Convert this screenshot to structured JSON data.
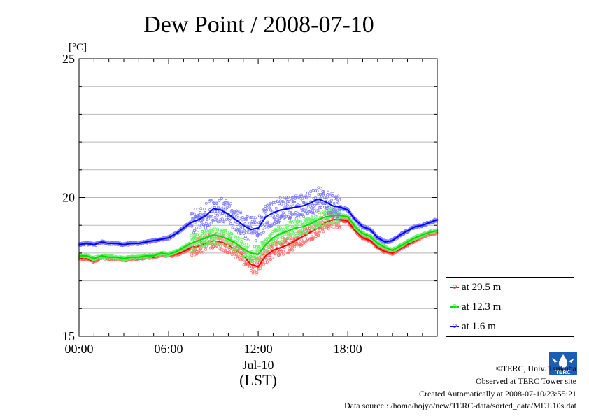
{
  "chart_data": {
    "type": "line",
    "title": "Dew Point / 2008-07-10",
    "unit_label": "[°C]",
    "xlabel": "(LST)",
    "date_label": "Jul-10",
    "x_ticks": [
      "00:00",
      "06:00",
      "12:00",
      "18:00"
    ],
    "x_tick_hours": [
      0,
      6,
      12,
      18
    ],
    "xlim_hours": [
      0,
      23.99
    ],
    "y_ticks": [
      15,
      20,
      25
    ],
    "ylim": [
      15,
      25
    ],
    "grid": true,
    "legend_position": "right-bottom",
    "x_hours": [
      0,
      0.5,
      1,
      1.5,
      2,
      2.5,
      3,
      3.5,
      4,
      4.5,
      5,
      5.5,
      6,
      6.5,
      7,
      7.5,
      8,
      8.5,
      9,
      9.5,
      10,
      10.5,
      11,
      11.5,
      12,
      12.5,
      13,
      13.5,
      14,
      14.5,
      15,
      15.5,
      16,
      16.5,
      17,
      17.5,
      18,
      18.5,
      19,
      19.5,
      20,
      20.5,
      21,
      21.5,
      22,
      22.5,
      23,
      23.5,
      23.99
    ],
    "series": [
      {
        "name": "at 29.5 m",
        "color": "#ff0000",
        "values": [
          17.8,
          17.8,
          17.7,
          17.85,
          17.8,
          17.8,
          17.75,
          17.8,
          17.8,
          17.85,
          17.85,
          17.95,
          17.9,
          17.95,
          18.05,
          18.2,
          18.25,
          18.35,
          18.45,
          18.4,
          18.3,
          18.1,
          17.9,
          17.6,
          17.5,
          17.9,
          18.1,
          18.2,
          18.3,
          18.45,
          18.6,
          18.75,
          18.9,
          19.1,
          19.2,
          19.2,
          19.15,
          18.8,
          18.55,
          18.45,
          18.2,
          18.05,
          18.0,
          18.15,
          18.3,
          18.45,
          18.6,
          18.7,
          18.75
        ]
      },
      {
        "name": "at 12.3 m",
        "color": "#00dd00",
        "values": [
          17.9,
          17.9,
          17.8,
          17.9,
          17.85,
          17.85,
          17.8,
          17.85,
          17.85,
          17.9,
          17.9,
          18.0,
          17.95,
          18.05,
          18.2,
          18.35,
          18.45,
          18.55,
          18.65,
          18.6,
          18.5,
          18.35,
          18.15,
          18.0,
          17.95,
          18.3,
          18.55,
          18.7,
          18.8,
          18.9,
          18.95,
          19.05,
          19.2,
          19.3,
          19.35,
          19.35,
          19.3,
          18.95,
          18.7,
          18.6,
          18.35,
          18.2,
          18.1,
          18.25,
          18.4,
          18.55,
          18.65,
          18.75,
          18.8
        ]
      },
      {
        "name": "at 1.6 m",
        "color": "#0000ff",
        "values": [
          18.3,
          18.35,
          18.3,
          18.4,
          18.35,
          18.35,
          18.3,
          18.35,
          18.35,
          18.4,
          18.45,
          18.5,
          18.55,
          18.7,
          18.9,
          19.1,
          19.2,
          19.35,
          19.6,
          19.55,
          19.4,
          19.2,
          19.0,
          18.85,
          18.9,
          19.3,
          19.45,
          19.55,
          19.6,
          19.65,
          19.7,
          19.8,
          19.95,
          19.85,
          19.7,
          19.65,
          19.55,
          19.2,
          18.95,
          18.85,
          18.55,
          18.4,
          18.45,
          18.65,
          18.8,
          18.95,
          19.0,
          19.1,
          19.2
        ]
      }
    ]
  },
  "footer": {
    "copyright": "©TERC, Univ. Tsukuba",
    "site": "Observed at TERC Tower site",
    "created": "Created Automatically at 2008-07-10/23:55:21",
    "source": "Data source : /home/hojyo/new/TERC-data/sorted_data/MET.10s.dat"
  },
  "logo": {
    "icon": "terc-logo-icon",
    "text": "TERC",
    "color": "#1a5fb4"
  }
}
